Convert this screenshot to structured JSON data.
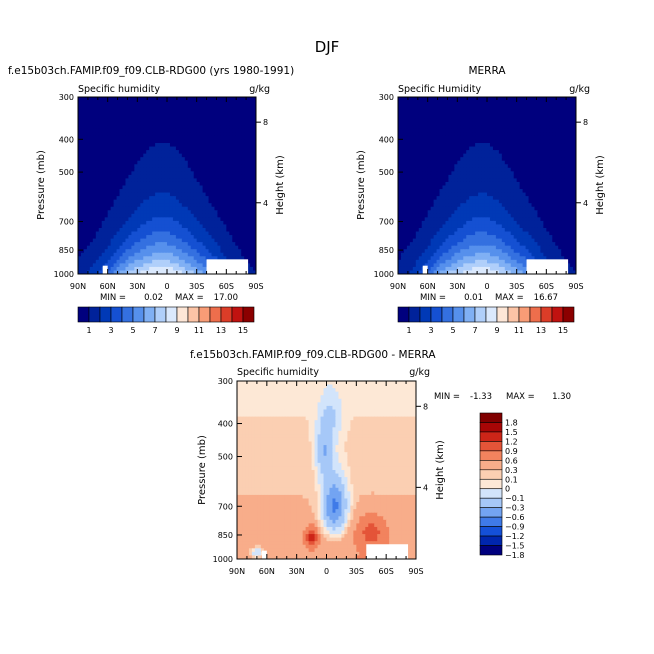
{
  "page_title": "DJF",
  "colors": {
    "palette_model": [
      "#00007e",
      "#00229a",
      "#0039b6",
      "#1550d2",
      "#3470e0",
      "#5690ec",
      "#80b0f4",
      "#b0cffa",
      "#dbe9fd",
      "#fde6d6",
      "#fcc4a6",
      "#f89c76",
      "#ee6e4c",
      "#dc3d28",
      "#c01210",
      "#8b0000"
    ],
    "palette_diff": [
      "#00007e",
      "#0026ae",
      "#1450d8",
      "#3f7ae8",
      "#73a4f2",
      "#a6c8f8",
      "#d2e4fb",
      "#fde8d6",
      "#fbcfb2",
      "#f8ad8a",
      "#f2835e",
      "#e45438",
      "#cd2518",
      "#a80606",
      "#800000"
    ]
  },
  "chart_data": [
    {
      "type": "heatmap",
      "title": "f.e15b03ch.FAMIP.f09_f09.CLB-RDG00 (yrs 1980-1991)",
      "subtitle_left": "Specific humidity",
      "subtitle_right": "g/kg",
      "ylabel": "Pressure (mb)",
      "ylabel_right": "Height (km)",
      "x_ticks": [
        "90N",
        "60N",
        "30N",
        "0",
        "30S",
        "60S",
        "90S"
      ],
      "y_ticks": [
        "300",
        "400",
        "500",
        "700",
        "850",
        "1000"
      ],
      "y_ticks_right": [
        "8",
        "4"
      ],
      "xlim": [
        90,
        -90
      ],
      "ylim": [
        1000,
        300
      ],
      "min_label": "MIN =",
      "min_value": "0.02",
      "max_label": "MAX =",
      "max_value": "17.00",
      "levels": [
        1,
        3,
        5,
        7,
        9,
        11,
        13,
        15
      ],
      "colorbar_labels": [
        "1",
        "3",
        "5",
        "7",
        "9",
        "11",
        "13",
        "15"
      ],
      "peak_lat": 5,
      "peak_value": 17.0,
      "top_value": 7.0
    },
    {
      "type": "heatmap",
      "title": "MERRA",
      "subtitle_left": "Specific Humidity",
      "subtitle_right": "g/kg",
      "ylabel": "Pressure (mb)",
      "ylabel_right": "Height (km)",
      "x_ticks": [
        "90N",
        "60N",
        "30N",
        "0",
        "30S",
        "60S",
        "90S"
      ],
      "y_ticks": [
        "300",
        "400",
        "500",
        "700",
        "850",
        "1000"
      ],
      "y_ticks_right": [
        "8",
        "4"
      ],
      "xlim": [
        90,
        -90
      ],
      "ylim": [
        1000,
        300
      ],
      "min_label": "MIN =",
      "min_value": "0.01",
      "max_label": "MAX =",
      "max_value": "16.67",
      "levels": [
        1,
        3,
        5,
        7,
        9,
        11,
        13,
        15
      ],
      "colorbar_labels": [
        "1",
        "3",
        "5",
        "7",
        "9",
        "11",
        "13",
        "15"
      ],
      "peak_lat": 5,
      "peak_value": 16.67,
      "top_value": 7.3
    },
    {
      "type": "heatmap",
      "title": "f.e15b03ch.FAMIP.f09_f09.CLB-RDG00 - MERRA",
      "subtitle_left": "Specific humidity",
      "subtitle_right": "g/kg",
      "ylabel": "Pressure (mb)",
      "ylabel_right": "Height (km)",
      "x_ticks": [
        "90N",
        "60N",
        "30N",
        "0",
        "30S",
        "60S",
        "90S"
      ],
      "y_ticks": [
        "300",
        "400",
        "500",
        "700",
        "850",
        "1000"
      ],
      "y_ticks_right": [
        "8",
        "4"
      ],
      "xlim": [
        90,
        -90
      ],
      "ylim": [
        1000,
        300
      ],
      "min_label": "MIN =",
      "min_value": "-1.33",
      "max_label": "MAX =",
      "max_value": "1.30",
      "levels": [
        -1.8,
        -1.5,
        -1.2,
        -0.9,
        -0.6,
        -0.3,
        -0.1,
        0,
        0.1,
        0.3,
        0.6,
        0.9,
        1.2,
        1.5,
        1.8
      ],
      "colorbar_labels": [
        "1.8",
        "1.5",
        "1.2",
        "0.9",
        "0.6",
        "0.3",
        "0.1",
        "0",
        "−0.1",
        "−0.3",
        "−0.6",
        "−0.9",
        "−1.2",
        "−1.5",
        "−1.8"
      ]
    }
  ]
}
